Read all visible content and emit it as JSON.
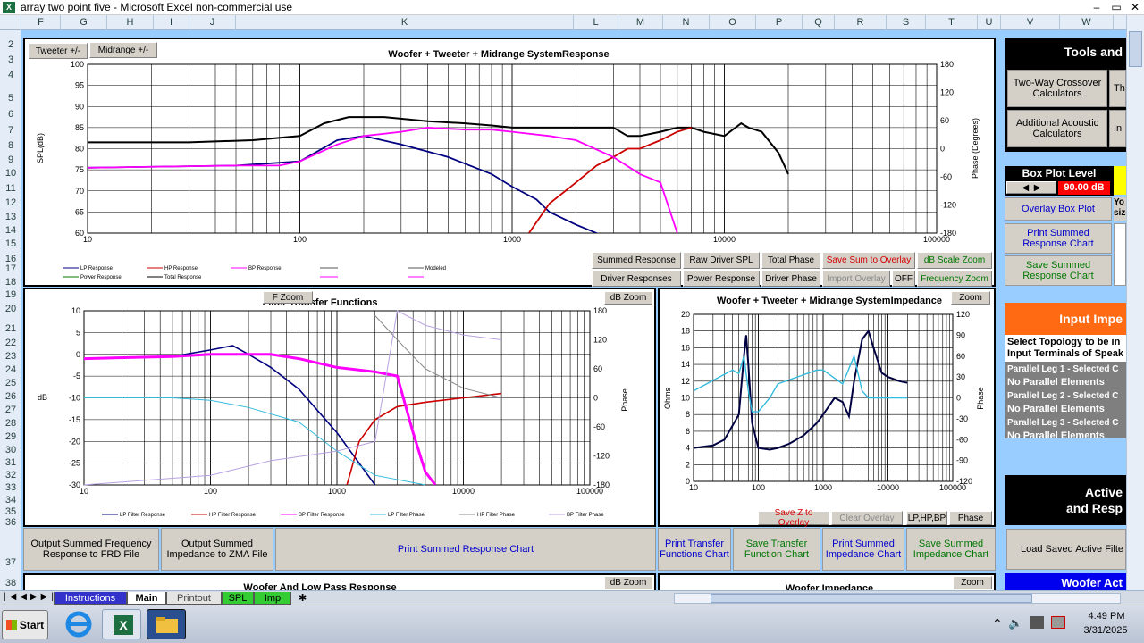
{
  "window": {
    "title": "array two point five - Microsoft Excel non-commercial use",
    "min": "–",
    "restore": "▭",
    "close": "✕"
  },
  "columns": [
    "F",
    "G",
    "H",
    "I",
    "J",
    "K",
    "L",
    "M",
    "N",
    "O",
    "P",
    "Q",
    "R",
    "S",
    "T",
    "U",
    "V",
    "W"
  ],
  "rows": [
    "2",
    "3",
    "4",
    "5",
    "6",
    "7",
    "8",
    "9",
    "10",
    "11",
    "12",
    "13",
    "14",
    "15",
    "16",
    "17",
    "18",
    "19",
    "20",
    "21",
    "22",
    "23",
    "24",
    "25",
    "26",
    "27",
    "28",
    "29",
    "30",
    "31",
    "32",
    "33",
    "34",
    "35",
    "36",
    "37",
    "38"
  ],
  "system_chart": {
    "tweeter_btn": "Tweeter +/-",
    "midrange_btn": "Midrange  +/-",
    "title": "Woofer + Tweeter + Midrange  SystemResponse",
    "ylabel": "SPL(dB)",
    "y2label": "Phase (Degrees)",
    "yticks": [
      "100",
      "95",
      "90",
      "85",
      "80",
      "75",
      "70",
      "65",
      "60"
    ],
    "y2ticks": [
      "180",
      "120",
      "60",
      "0",
      "-60",
      "-120",
      "-180"
    ],
    "xticks": [
      "10",
      "100",
      "1000",
      "10000",
      "100000"
    ],
    "legend": [
      "LP Response",
      "HP Response",
      "BP Response",
      "Modeled",
      "Power Response",
      "Total Response"
    ]
  },
  "chart_data": [
    {
      "type": "line",
      "title": "Woofer + Tweeter + Midrange  SystemResponse",
      "ylabel": "SPL(dB)",
      "y2label": "Phase (Degrees)",
      "xscale": "log",
      "xlim": [
        10,
        100000
      ],
      "ylim": [
        60,
        100
      ],
      "y2lim": [
        -180,
        180
      ],
      "legend": "bottom",
      "series": [
        {
          "name": "Total Response",
          "x": [
            10,
            30,
            60,
            100,
            130,
            170,
            250,
            400,
            600,
            800,
            1000,
            1500,
            2000,
            2500,
            3000,
            3500,
            4000,
            5000,
            6000,
            7000,
            8000,
            10000,
            12000,
            13000,
            15000,
            18000,
            20000
          ],
          "y": [
            81.5,
            81.5,
            82,
            83,
            86,
            87.5,
            87.5,
            86.5,
            86,
            85.5,
            85,
            85,
            85,
            85,
            85,
            83,
            83,
            84,
            85,
            85,
            84,
            83,
            86,
            85,
            84,
            79,
            74
          ]
        },
        {
          "name": "LP Response",
          "x": [
            10,
            50,
            100,
            150,
            200,
            300,
            500,
            800,
            1000,
            1300,
            1500,
            2000,
            2500,
            3000
          ],
          "y": [
            75.5,
            76,
            77,
            82,
            83,
            81,
            78,
            74,
            71,
            68,
            65,
            62,
            60,
            57
          ]
        },
        {
          "name": "HP Response",
          "x": [
            1200,
            1500,
            2000,
            2500,
            3000,
            3500,
            4000,
            5000,
            6000,
            7000
          ],
          "y": [
            60,
            67,
            72,
            76,
            78,
            80,
            80,
            82,
            84,
            85
          ]
        },
        {
          "name": "BP Response",
          "x": [
            10,
            50,
            80,
            100,
            150,
            200,
            300,
            400,
            600,
            800,
            1000,
            1500,
            2000,
            3000,
            4000,
            5000,
            6000
          ],
          "y": [
            75.5,
            76,
            76,
            77,
            81,
            83,
            84,
            85,
            84.5,
            84.5,
            84,
            83,
            82,
            78,
            74,
            72,
            60
          ]
        }
      ]
    },
    {
      "type": "line",
      "title": "Filter Transfer Functions",
      "ylabel": "dB",
      "y2label": "Phase",
      "xscale": "log",
      "xlim": [
        10,
        100000
      ],
      "ylim": [
        -30,
        10
      ],
      "y2lim": [
        -180,
        180
      ],
      "legend": "bottom",
      "series": [
        {
          "name": "LP Filter Response",
          "x": [
            10,
            50,
            100,
            150,
            200,
            300,
            500,
            1000,
            2000
          ],
          "y": [
            -1,
            -0.5,
            1,
            2,
            0,
            -3,
            -8,
            -18,
            -30
          ]
        },
        {
          "name": "HP Filter Response",
          "x": [
            1200,
            1500,
            2000,
            3000,
            5000,
            10000,
            20000
          ],
          "y": [
            -30,
            -20,
            -15,
            -12,
            -11,
            -10,
            -9
          ]
        },
        {
          "name": "BP Filter Response",
          "x": [
            10,
            50,
            100,
            200,
            300,
            500,
            1000,
            2000,
            3000,
            4000,
            5000,
            6000
          ],
          "y": [
            -1,
            -0.5,
            0,
            0,
            0,
            -1,
            -3,
            -4,
            -5,
            -18,
            -27,
            -30
          ]
        },
        {
          "name": "LP Filter Phase",
          "x": [
            10,
            50,
            100,
            200,
            500,
            1000,
            2000,
            5000
          ],
          "y": [
            0,
            0,
            -5,
            -20,
            -50,
            -110,
            -160,
            -180
          ]
        },
        {
          "name": "HP Filter Phase",
          "x": [
            2000,
            3000,
            5000,
            10000,
            20000
          ],
          "y": [
            170,
            120,
            60,
            20,
            0
          ]
        },
        {
          "name": "BP Filter Phase",
          "x": [
            10,
            100,
            300,
            1000,
            2000,
            3000,
            5000,
            10000,
            20000
          ],
          "y": [
            -180,
            -160,
            -130,
            -110,
            -90,
            180,
            150,
            130,
            120
          ]
        }
      ]
    },
    {
      "type": "line",
      "title": "Woofer + Tweeter + Midrange  SystemImpedance",
      "ylabel": "Ohms",
      "y2label": "Phase",
      "xscale": "log",
      "xlim": [
        10,
        100000
      ],
      "ylim": [
        0,
        20
      ],
      "y2lim": [
        -120,
        120
      ],
      "series": [
        {
          "name": "Impedance",
          "x": [
            10,
            20,
            30,
            50,
            60,
            65,
            70,
            80,
            100,
            150,
            200,
            300,
            500,
            800,
            1000,
            1500,
            2000,
            2500,
            3000,
            4000,
            5000,
            6000,
            8000,
            10000,
            15000,
            20000
          ],
          "y": [
            4,
            4.3,
            5,
            8,
            15,
            17.5,
            14,
            7,
            4,
            3.8,
            4,
            4.5,
            5.5,
            7,
            8,
            10,
            9.5,
            7.8,
            12,
            17,
            18,
            16,
            13,
            12.5,
            12,
            11.8
          ]
        },
        {
          "name": "Phase",
          "x": [
            10,
            20,
            40,
            50,
            60,
            70,
            80,
            100,
            150,
            200,
            400,
            800,
            1000,
            2000,
            3000,
            4000,
            5000,
            7000,
            10000,
            20000
          ],
          "y": [
            10,
            25,
            40,
            35,
            60,
            10,
            -20,
            -20,
            0,
            20,
            30,
            40,
            40,
            20,
            60,
            10,
            0,
            0,
            0,
            0
          ]
        }
      ]
    }
  ],
  "system_buttons": {
    "summed": "Summed Response",
    "raw": "Raw Driver SPL",
    "total_phase": "Total Phase",
    "save_sum": "Save Sum to Overlay",
    "db_zoom": "dB Scale Zoom",
    "driver_resp": "Driver Responses",
    "power": "Power Response",
    "driver_phase": "Driver Phase",
    "import": "Import Overlay",
    "off": "OFF",
    "freq_zoom": "Frequency Zoom"
  },
  "filter_chart": {
    "title": "Filter Transfer Functions",
    "f_zoom": "F Zoom",
    "db_zoom": "dB Zoom",
    "ylabel": "dB",
    "y2label": "Phase",
    "yticks": [
      "10",
      "5",
      "0",
      "-5",
      "-10",
      "-15",
      "-20",
      "-25",
      "-30"
    ],
    "y2ticks": [
      "180",
      "120",
      "60",
      "0",
      "-60",
      "-120",
      "-180"
    ],
    "xticks": [
      "10",
      "100",
      "1000",
      "10000",
      "100000"
    ],
    "legend": [
      "LP Filter Response",
      "HP Filter Response",
      "BP Filter Response",
      "LP Filter Phase",
      "HP Filter Phase",
      "BP Filter Phase"
    ]
  },
  "imp_chart": {
    "title": "Woofer + Tweeter + Midrange  SystemImpedance",
    "zoom": "Zoom",
    "ylabel": "Ohms",
    "y2label": "Phase",
    "yticks": [
      "20",
      "18",
      "16",
      "14",
      "12",
      "10",
      "8",
      "6",
      "4",
      "2",
      "0"
    ],
    "y2ticks": [
      "120",
      "90",
      "60",
      "30",
      "0",
      "-30",
      "-60",
      "-90",
      "-120"
    ],
    "xticks": [
      "10",
      "100",
      "1000",
      "10000",
      "100000"
    ],
    "save_z": "Save Z to Overlay",
    "clear": "Clear Overlay",
    "lphpbp": "LP,HP,BP",
    "phase": "Phase"
  },
  "bottom_buttons": {
    "frd": "Output Summed Frequency Response to FRD File",
    "zma": "Output Summed Impedance to ZMA File",
    "print_summed": "Print Summed Response Chart",
    "print_transfer": "Print Transfer Functions Chart",
    "save_transfer": "Save Transfer Function Chart",
    "print_imp": "Print Summed Impedance Chart",
    "save_imp": "Save Summed Impedance Chart"
  },
  "lower_row": {
    "woofer_lp": "Woofer  And Low Pass Response",
    "db_zoom": "dB Zoom",
    "woofer_imp": "Woofer  Impedance",
    "zoom": "Zoom"
  },
  "sidebar": {
    "tools": "Tools and",
    "two_way": "Two-Way Crossover Calculators",
    "t_cut": "Th",
    "additional": "Additional Acoustic Calculators",
    "i_cut": "In",
    "box_plot": "Box Plot Level",
    "box_value": "90.00 dB",
    "overlay_box": "Overlay Box Plot",
    "yo": "Yo",
    "siz": "size",
    "print_summed": "Print Summed Response Chart",
    "save_summed": "Save Summed Response Chart",
    "input_imp": "Input Impe",
    "select_topo": "Select Topology to be in",
    "input_term": "Input Terminals of Speak",
    "leg1": "Parallel Leg 1 - Selected C",
    "leg1v": "No Parallel Elements",
    "leg2": "Parallel Leg 2 - Selected C",
    "leg2v": "No Parallel Elements",
    "leg3": "Parallel Leg 3 - Selected C",
    "leg3v": "No Parallel Elements",
    "active1": "Active",
    "active2": "and Resp",
    "load_saved": "Load Saved Active Filte",
    "woofer_act": "Woofer Act"
  },
  "tabs": [
    "Instructions",
    "Main",
    "Printout",
    "SPL",
    "Imp"
  ],
  "taskbar": {
    "start": "Start",
    "time": "4:49 PM",
    "date": "3/31/2025"
  },
  "colors": {
    "sheet_bg": "#99ccff",
    "lp": "#000080",
    "hp": "#cc0000",
    "bp": "#ff00ff",
    "total": "#000000",
    "imp_phase": "#33bbdd"
  }
}
